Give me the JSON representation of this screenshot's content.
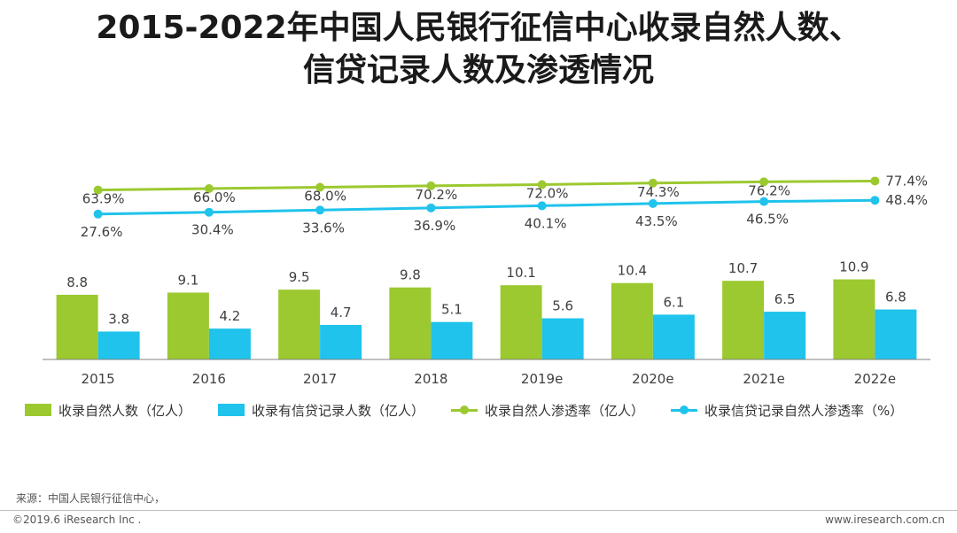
{
  "title": {
    "line1": "2015-2022年中国人民银行征信中心收录自然人数、",
    "line2": "信贷记录人数及渗透情况"
  },
  "colors": {
    "green": "#9bc92f",
    "blue": "#1fc3ec",
    "axis": "#808080"
  },
  "legend": {
    "bar1": "收录自然人数（亿人）",
    "bar2": "收录有信贷记录人数（亿人）",
    "line1": "收录自然人渗透率（亿人）",
    "line2": "收录信贷记录自然人渗透率（%）"
  },
  "chart_data": {
    "type": "bar+line",
    "categories": [
      "2015",
      "2016",
      "2017",
      "2018",
      "2019e",
      "2020e",
      "2021e",
      "2022e"
    ],
    "series": [
      {
        "name": "收录自然人数（亿人）",
        "type": "bar",
        "values": [
          8.8,
          9.1,
          9.5,
          9.8,
          10.1,
          10.4,
          10.7,
          10.9
        ],
        "labels": [
          "8.8",
          "9.1",
          "9.5",
          "9.8",
          "10.1",
          "10.4",
          "10.7",
          "10.9"
        ]
      },
      {
        "name": "收录有信贷记录人数（亿人）",
        "type": "bar",
        "values": [
          3.8,
          4.2,
          4.7,
          5.1,
          5.6,
          6.1,
          6.5,
          6.8
        ],
        "labels": [
          "3.8",
          "4.2",
          "4.7",
          "5.1",
          "5.6",
          "6.1",
          "6.5",
          "6.8"
        ]
      },
      {
        "name": "收录自然人渗透率（亿人）",
        "type": "line",
        "values": [
          63.9,
          66.0,
          68.0,
          70.2,
          72.0,
          74.3,
          76.2,
          77.4
        ],
        "labels": [
          "63.9%",
          "66.0%",
          "68.0%",
          "70.2%",
          "72.0%",
          "74.3%",
          "76.2%",
          "77.4%"
        ]
      },
      {
        "name": "收录信贷记录自然人渗透率（%）",
        "type": "line",
        "values": [
          27.6,
          30.4,
          33.6,
          36.9,
          40.1,
          43.5,
          46.5,
          48.4
        ],
        "labels": [
          "27.6%",
          "30.4%",
          "33.6%",
          "36.9%",
          "40.1%",
          "43.5%",
          "46.5%",
          "48.4%"
        ]
      }
    ],
    "title": "2015-2022年中国人民银行征信中心收录自然人数、信贷记录人数及渗透情况",
    "xlabel": "",
    "ylabel": "",
    "legend_position": "bottom"
  },
  "footer": {
    "source": "来源：中国人民银行征信中心，",
    "copyright": "©2019.6 iResearch Inc .",
    "site": "www.iresearch.com.cn"
  }
}
